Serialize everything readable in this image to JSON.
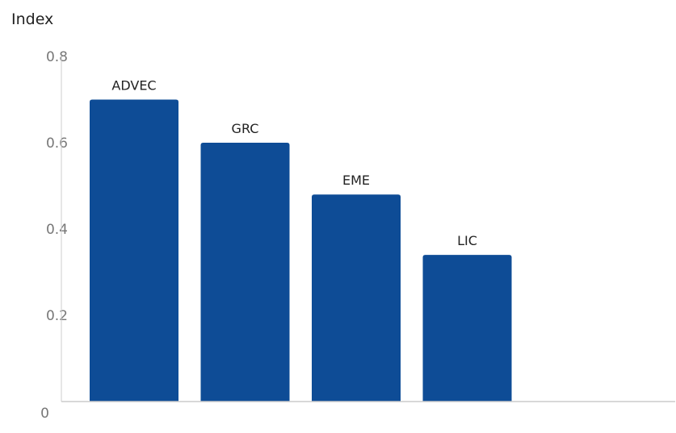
{
  "chart_data": {
    "type": "bar",
    "ylabel": "Index",
    "categories": [
      "ADVEC",
      "GRC",
      "EME",
      "LIC"
    ],
    "values": [
      0.7,
      0.6,
      0.48,
      0.34
    ],
    "ylim": [
      0,
      0.8
    ],
    "yticks": [
      "0",
      "0.2",
      "0.4",
      "0.6",
      "0.8"
    ],
    "tick_values": [
      0,
      0.2,
      0.4,
      0.6,
      0.8
    ],
    "bar_color": "#0e4c96",
    "axis_color": "#cccccc",
    "grid": false,
    "legend": "none"
  }
}
